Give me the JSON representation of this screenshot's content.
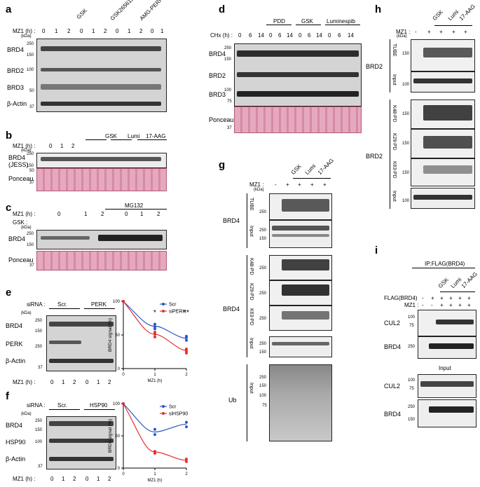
{
  "panels": {
    "a": "a",
    "b": "b",
    "c": "c",
    "d": "d",
    "e": "e",
    "f": "f",
    "g": "g",
    "h": "h",
    "i": "i"
  },
  "common": {
    "kda": "(kDa)",
    "mz1_h": "MZ1 (h) :",
    "mz1": "MZ1 :",
    "gsk": "GSK",
    "lumi": "Lumi",
    "aag": "17-AAG",
    "plus": "+",
    "minus": "-",
    "brd4": "BRD4",
    "brd2": "BRD2",
    "brd3": "BRD3",
    "actin": "β-Actin",
    "ponceau": "Ponceau",
    "tube": "TUBE",
    "input": "Input",
    "k48": "K48-PD",
    "k29": "K29-PD",
    "k63": "K63-PD",
    "ub": "Ub",
    "t0": "0",
    "t1": "1",
    "t2": "2"
  },
  "a": {
    "groups": [
      "GSK",
      "GSK2656157",
      "AMG-PERK"
    ],
    "m250": "250",
    "m100": "100",
    "m150": "150",
    "m50": "50",
    "m37": "37"
  },
  "b": {
    "brd4_jess": "BRD4",
    "jess": "(JESS)",
    "m250": "250",
    "m150": "150",
    "m50": "50",
    "m37": "37"
  },
  "c": {
    "mg132": "MG132",
    "gsk_row": "GSK :",
    "m250": "250",
    "m150": "150",
    "m37": "37"
  },
  "d": {
    "chx": "CHx (h) :",
    "groups": [
      "PDD",
      "GSK",
      "Luminespib"
    ],
    "times": [
      "0",
      "6",
      "14"
    ],
    "m250": "250",
    "m150": "150",
    "m100": "100",
    "m75": "75",
    "m37": "37"
  },
  "e": {
    "sirna": "siRNA :",
    "scr": "Scr.",
    "perk": "PERK",
    "perk_row": "PERK",
    "m250": "250",
    "m150": "150",
    "m37": "37"
  },
  "f": {
    "sirna": "siRNA :",
    "scr": "Scr.",
    "hsp90": "HSP90",
    "hsp90_row": "HSP90",
    "m250": "250",
    "m150": "150",
    "m100": "100",
    "m37": "37"
  },
  "g": {
    "m250": "250",
    "m150": "150",
    "m100": "100",
    "m75": "75"
  },
  "h": {
    "m150": "150",
    "m100": "100"
  },
  "i": {
    "ip": "IP:FLAG(BRD4)",
    "flag": "FLAG(BRD4)",
    "input": "Input",
    "cul2": "CUL2",
    "m100": "100",
    "m75": "75",
    "m250": "250",
    "m150": "150"
  },
  "chart_data": [
    {
      "type": "line",
      "panel": "e",
      "x": [
        0,
        1,
        2
      ],
      "xlabel": "MZ1 (h)",
      "ylabel": "BRD4 signal (%)",
      "ylim": [
        0,
        100
      ],
      "xticks": [
        "0",
        "1",
        "2"
      ],
      "yticks": [
        "0",
        "50",
        "100"
      ],
      "legend": "top-right",
      "significance": [
        {
          "x": 1,
          "label": "*"
        },
        {
          "x": 2,
          "label": "**"
        }
      ],
      "series": [
        {
          "name": "Scr",
          "color": "#2c56c8",
          "values": [
            100,
            63,
            45
          ],
          "points": [
            [
              1,
              59
            ],
            [
              1,
              62
            ],
            [
              1,
              66
            ],
            [
              2,
              42
            ],
            [
              2,
              46
            ],
            [
              2,
              48
            ]
          ]
        },
        {
          "name": "siPERK",
          "color": "#e23030",
          "values": [
            100,
            51,
            27
          ],
          "points": [
            [
              1,
              47
            ],
            [
              1,
              51
            ],
            [
              1,
              54
            ],
            [
              2,
              23
            ],
            [
              2,
              26
            ],
            [
              2,
              29
            ]
          ]
        }
      ]
    },
    {
      "type": "line",
      "panel": "f",
      "x": [
        0,
        1,
        2
      ],
      "xlabel": "MZ1 (h)",
      "ylabel": "BRD4 signal (%)",
      "ylim": [
        0,
        100
      ],
      "xticks": [
        "0",
        "1",
        "2"
      ],
      "yticks": [
        "0",
        "50",
        "100"
      ],
      "legend": "top-right",
      "series": [
        {
          "name": "Scr",
          "color": "#2c56c8",
          "values": [
            100,
            56,
            68
          ],
          "points": [
            [
              1,
              52
            ],
            [
              1,
              60
            ],
            [
              2,
              64
            ],
            [
              2,
              71
            ]
          ]
        },
        {
          "name": "siHSP90",
          "color": "#e23030",
          "values": [
            100,
            25,
            12
          ],
          "points": [
            [
              1,
              23
            ],
            [
              1,
              26
            ],
            [
              2,
              10
            ],
            [
              2,
              14
            ]
          ]
        }
      ]
    }
  ]
}
